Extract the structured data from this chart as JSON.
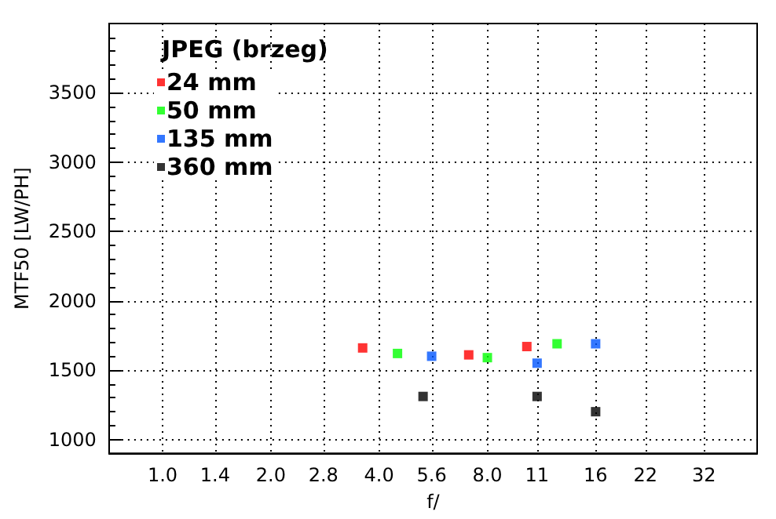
{
  "chart_data": {
    "type": "scatter",
    "xlabel": "f/",
    "ylabel": "MTF50 [LW/PH]",
    "legend_title": "JPEG (brzeg)",
    "log": "x",
    "xlim": [
      0.71,
      45
    ],
    "ylim": [
      900,
      4000
    ],
    "xticks": [
      {
        "value": 1,
        "label": "1.0"
      },
      1.4,
      {
        "value": 2,
        "label": "2.0"
      },
      2.8,
      {
        "value": 4,
        "label": "4.0"
      },
      5.6,
      {
        "value": 8,
        "label": "8.0"
      },
      11,
      16,
      22,
      32
    ],
    "yticks": [
      1000,
      1500,
      2000,
      2500,
      3000,
      3500
    ],
    "grid": true,
    "legend": "top left",
    "marker": "square",
    "series": [
      {
        "name": "24 mm",
        "color": "#ff0000",
        "x": [
          3.6,
          7.1,
          10.3
        ],
        "values": [
          1660,
          1610,
          1670
        ]
      },
      {
        "name": "50 mm",
        "color": "#00ff00",
        "x": [
          4.5,
          8,
          12.5
        ],
        "values": [
          1620,
          1590,
          1690
        ]
      },
      {
        "name": "135 mm",
        "color": "#0055ff",
        "x": [
          5.6,
          11,
          16
        ],
        "values": [
          1600,
          1550,
          1690
        ]
      },
      {
        "name": "360 mm",
        "color": "#000000",
        "x": [
          5.3,
          11,
          16
        ],
        "values": [
          1310,
          1310,
          1200
        ]
      }
    ]
  }
}
